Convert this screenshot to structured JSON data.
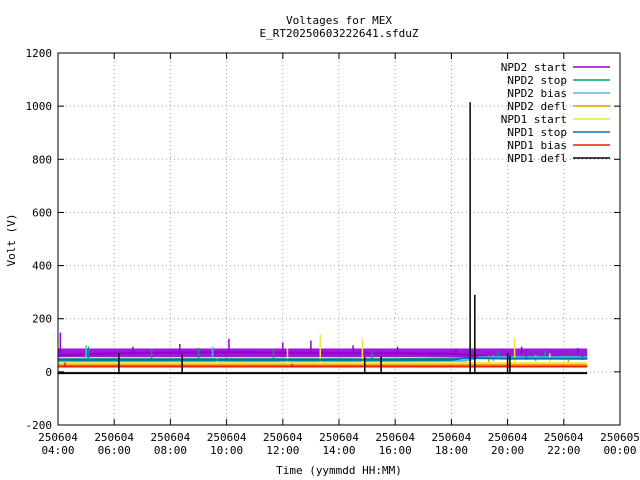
{
  "chart_data": {
    "type": "line",
    "title": "Voltages for MEX",
    "subtitle": "E_RT20250603222641.sfduZ",
    "xlabel": "Time (yymmdd HH:MM)",
    "ylabel": "Volt (V)",
    "xlim": [
      "2025-06-04 04:00",
      "2025-06-05 00:00"
    ],
    "ylim": [
      -200,
      1200
    ],
    "yticks": [
      -200,
      0,
      200,
      400,
      600,
      800,
      1000,
      1200
    ],
    "xticks": [
      {
        "date": "250604",
        "time": "04:00"
      },
      {
        "date": "250604",
        "time": "06:00"
      },
      {
        "date": "250604",
        "time": "08:00"
      },
      {
        "date": "250604",
        "time": "10:00"
      },
      {
        "date": "250604",
        "time": "12:00"
      },
      {
        "date": "250604",
        "time": "14:00"
      },
      {
        "date": "250604",
        "time": "16:00"
      },
      {
        "date": "250604",
        "time": "18:00"
      },
      {
        "date": "250604",
        "time": "20:00"
      },
      {
        "date": "250604",
        "time": "22:00"
      },
      {
        "date": "250605",
        "time": "00:00"
      }
    ],
    "grid": true,
    "legend_position": "top-right",
    "series": [
      {
        "name": "NPD2 start",
        "color": "#9400d3",
        "base": 70,
        "band": [
          55,
          88
        ],
        "spikes": [
          [
            "04:05",
            148
          ],
          [
            "06:40",
            95
          ],
          [
            "08:20",
            105
          ],
          [
            "10:05",
            125
          ],
          [
            "12:00",
            110
          ],
          [
            "13:00",
            118
          ],
          [
            "14:30",
            100
          ],
          [
            "16:05",
            95
          ],
          [
            "18:10",
            88
          ],
          [
            "20:30",
            95
          ],
          [
            "22:30",
            90
          ]
        ],
        "data": [
          [
            "04:00",
            62
          ],
          [
            "06:00",
            70
          ],
          [
            "08:00",
            72
          ],
          [
            "10:00",
            74
          ],
          [
            "12:00",
            72
          ],
          [
            "14:00",
            70
          ],
          [
            "16:00",
            70
          ],
          [
            "18:00",
            68
          ],
          [
            "20:00",
            52
          ],
          [
            "22:00",
            50
          ],
          [
            "22:50",
            50
          ]
        ]
      },
      {
        "name": "NPD2 stop",
        "color": "#009e73",
        "base": 48,
        "spikes": [
          [
            "05:05",
            95
          ],
          [
            "07:20",
            88
          ],
          [
            "09:00",
            90
          ],
          [
            "11:40",
            85
          ],
          [
            "15:10",
            80
          ],
          [
            "19:40",
            78
          ],
          [
            "21:20",
            80
          ]
        ],
        "data": [
          [
            "04:00",
            48
          ],
          [
            "10:00",
            48
          ],
          [
            "16:00",
            48
          ],
          [
            "18:00",
            50
          ],
          [
            "20:00",
            56
          ],
          [
            "22:50",
            56
          ]
        ]
      },
      {
        "name": "NPD2 bias",
        "color": "#56b4e9",
        "base": 40,
        "spikes": [
          [
            "05:00",
            100
          ],
          [
            "09:30",
            95
          ],
          [
            "19:30",
            62
          ],
          [
            "21:00",
            65
          ]
        ],
        "data": [
          [
            "04:00",
            40
          ],
          [
            "12:00",
            40
          ],
          [
            "18:30",
            42
          ],
          [
            "19:00",
            55
          ],
          [
            "22:50",
            55
          ]
        ]
      },
      {
        "name": "NPD2 defl",
        "color": "#e69f00",
        "base": 28,
        "spikes": [
          [
            "04:30",
            40
          ],
          [
            "08:10",
            45
          ],
          [
            "10:30",
            40
          ],
          [
            "16:30",
            42
          ],
          [
            "19:20",
            60
          ],
          [
            "22:10",
            50
          ]
        ],
        "data": [
          [
            "04:00",
            28
          ],
          [
            "10:00",
            28
          ],
          [
            "16:00",
            28
          ],
          [
            "20:00",
            28
          ],
          [
            "22:50",
            28
          ]
        ]
      },
      {
        "name": "NPD1 start",
        "color": "#f0e442",
        "base": 33,
        "spikes": [
          [
            "06:10",
            60
          ],
          [
            "09:40",
            55
          ],
          [
            "12:10",
            88
          ],
          [
            "13:20",
            140
          ],
          [
            "14:50",
            125
          ],
          [
            "20:15",
            128
          ],
          [
            "21:30",
            70
          ]
        ],
        "data": [
          [
            "04:00",
            33
          ],
          [
            "10:00",
            33
          ],
          [
            "16:00",
            33
          ],
          [
            "20:00",
            33
          ],
          [
            "22:50",
            33
          ]
        ]
      },
      {
        "name": "NPD1 stop",
        "color": "#0072b2",
        "base": 45,
        "spikes": [
          [
            "18:50",
            60
          ],
          [
            "20:40",
            62
          ],
          [
            "22:40",
            60
          ]
        ],
        "data": [
          [
            "04:00",
            45
          ],
          [
            "18:00",
            45
          ],
          [
            "18:30",
            52
          ],
          [
            "20:00",
            50
          ],
          [
            "22:50",
            50
          ]
        ]
      },
      {
        "name": "NPD1 bias",
        "color": "#e51e10",
        "base": 20,
        "spikes": [
          [
            "04:15",
            35
          ],
          [
            "12:20",
            30
          ],
          [
            "20:00",
            30
          ]
        ],
        "data": [
          [
            "04:00",
            20
          ],
          [
            "12:00",
            20
          ],
          [
            "20:00",
            20
          ],
          [
            "22:50",
            20
          ]
        ]
      },
      {
        "name": "NPD1 defl",
        "color": "#000000",
        "base": -5,
        "spikes": [
          [
            "06:10",
            70
          ],
          [
            "08:25",
            65
          ],
          [
            "14:55",
            55
          ],
          [
            "15:30",
            60
          ],
          [
            "18:40",
            1015
          ],
          [
            "18:50",
            290
          ],
          [
            "20:00",
            70
          ],
          [
            "20:05",
            60
          ]
        ],
        "data": [
          [
            "04:00",
            -5
          ],
          [
            "10:00",
            -5
          ],
          [
            "16:00",
            -5
          ],
          [
            "20:00",
            -5
          ],
          [
            "22:50",
            -5
          ]
        ]
      }
    ]
  }
}
